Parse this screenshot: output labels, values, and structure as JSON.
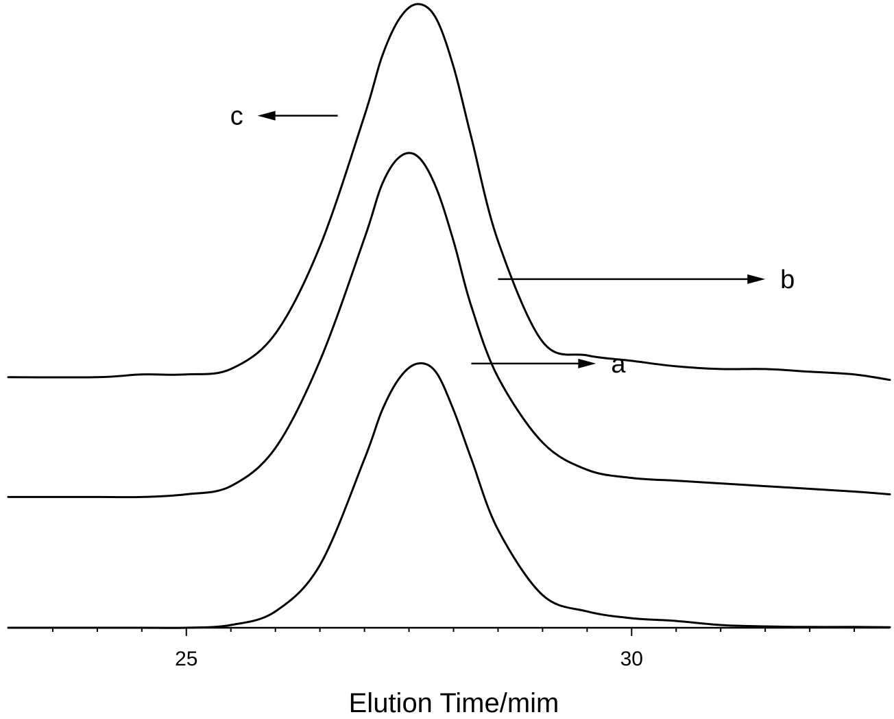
{
  "chart_data": {
    "type": "line",
    "title": "",
    "xlabel": "Elution Time/mim",
    "ylabel": "",
    "xlim": [
      23.0,
      32.9
    ],
    "xticks": [
      25,
      30
    ],
    "minor_xticks": [
      23.5,
      24.0,
      24.5,
      25.5,
      26.0,
      26.5,
      27.0,
      27.5,
      28.0,
      28.5,
      29.0,
      29.5,
      30.5,
      31.0,
      31.5,
      32.0,
      32.5
    ],
    "grid": false,
    "legend": "none",
    "x": [
      23.0,
      24.0,
      24.5,
      25.0,
      25.5,
      26.0,
      26.5,
      27.0,
      27.2,
      27.4,
      27.6,
      27.8,
      28.0,
      28.2,
      28.5,
      29.0,
      29.5,
      30.0,
      30.5,
      31.0,
      31.5,
      32.0,
      32.5,
      32.9
    ],
    "series": [
      {
        "name": "a",
        "values": [
          0,
          0,
          0,
          0,
          0.01,
          0.06,
          0.23,
          0.62,
          0.8,
          0.92,
          0.97,
          0.94,
          0.8,
          0.62,
          0.36,
          0.12,
          0.06,
          0.035,
          0.025,
          0.01,
          0.005,
          0.003,
          0.003,
          0.002
        ]
      },
      {
        "name": "b",
        "values": [
          0.48,
          0.48,
          0.48,
          0.49,
          0.52,
          0.66,
          0.98,
          1.43,
          1.63,
          1.73,
          1.73,
          1.62,
          1.42,
          1.18,
          0.92,
          0.68,
          0.58,
          0.55,
          0.54,
          0.53,
          0.52,
          0.51,
          0.5,
          0.49
        ]
      },
      {
        "name": "c",
        "values": [
          0.92,
          0.92,
          0.93,
          0.93,
          0.95,
          1.08,
          1.4,
          1.88,
          2.1,
          2.24,
          2.29,
          2.24,
          2.06,
          1.8,
          1.42,
          1.05,
          1.0,
          0.98,
          0.96,
          0.95,
          0.95,
          0.94,
          0.93,
          0.91
        ]
      }
    ],
    "annotations": [
      {
        "label": "a",
        "from_x": 28.2,
        "to_x": 29.6,
        "y": 0.97,
        "direction": "right"
      },
      {
        "label": "b",
        "from_x": 28.5,
        "to_x": 31.5,
        "y": 1.28,
        "direction": "right"
      },
      {
        "label": "c",
        "from_x": 26.7,
        "to_x": 25.8,
        "y": 1.88,
        "direction": "left"
      }
    ]
  }
}
